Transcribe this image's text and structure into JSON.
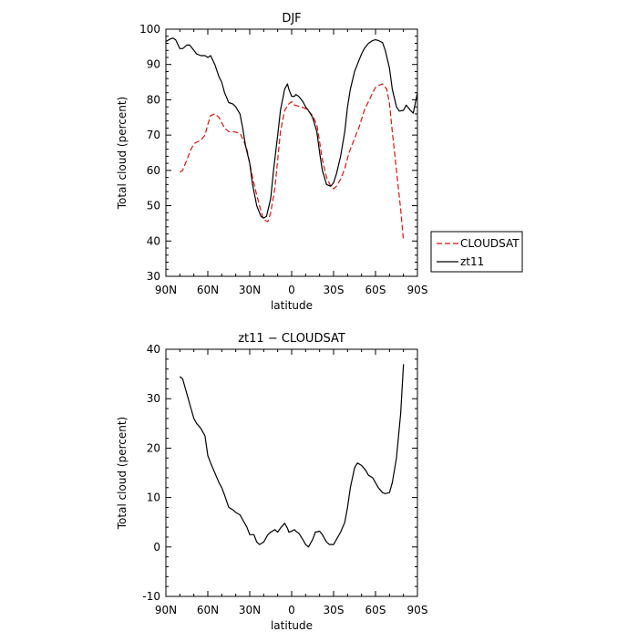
{
  "chart_data": [
    {
      "type": "line",
      "title": "DJF",
      "xlabel": "latitude",
      "ylabel": "Total cloud (percent)",
      "xlim": [
        90,
        -90
      ],
      "ylim": [
        30,
        100
      ],
      "xticks": [
        90,
        60,
        30,
        0,
        -30,
        -60,
        -90
      ],
      "xtick_labels": [
        "90N",
        "60N",
        "30N",
        "0",
        "30S",
        "60S",
        "90S"
      ],
      "yticks": [
        30,
        40,
        50,
        60,
        70,
        80,
        90,
        100
      ],
      "legend": {
        "placement": "right-outside"
      },
      "series": [
        {
          "name": "CLOUDSAT",
          "color": "#e01010",
          "dash": true,
          "x": [
            80,
            78,
            75,
            72,
            70,
            68,
            65,
            62,
            60,
            58,
            55,
            52,
            50,
            48,
            45,
            42,
            40,
            37,
            35,
            32,
            30,
            28,
            25,
            22,
            20,
            17,
            15,
            12,
            10,
            8,
            5,
            2,
            0,
            -2,
            -5,
            -8,
            -10,
            -12,
            -15,
            -18,
            -20,
            -22,
            -25,
            -28,
            -30,
            -32,
            -35,
            -38,
            -40,
            -42,
            -45,
            -48,
            -50,
            -52,
            -55,
            -58,
            -60,
            -62,
            -65,
            -68,
            -70,
            -72,
            -75,
            -78,
            -80
          ],
          "y": [
            59.5,
            60,
            63,
            66,
            67.5,
            68,
            68.5,
            70,
            73,
            75.5,
            76,
            75,
            73.5,
            72,
            71,
            71,
            70.8,
            70.5,
            69,
            66,
            62,
            58,
            53,
            48.5,
            46,
            45.5,
            48,
            55,
            63,
            71,
            77,
            78.8,
            79.5,
            78.5,
            78.2,
            77.8,
            77.5,
            76.8,
            75.5,
            73,
            68,
            63,
            58,
            55.5,
            54.8,
            55.5,
            57.5,
            60.5,
            63.5,
            66,
            69,
            72,
            74.5,
            77,
            79.5,
            82,
            83.5,
            84,
            84.5,
            83,
            79,
            71,
            60,
            49,
            40
          ]
        },
        {
          "name": "zt11",
          "color": "#000000",
          "dash": false,
          "x": [
            90,
            87,
            85,
            83,
            80,
            78,
            75,
            73,
            70,
            68,
            65,
            63,
            62,
            60,
            58,
            55,
            52,
            50,
            48,
            45,
            42,
            40,
            37,
            35,
            33,
            30,
            28,
            25,
            22,
            20,
            18,
            15,
            13,
            10,
            8,
            5,
            3,
            2,
            0,
            -2,
            -3,
            -5,
            -8,
            -10,
            -12,
            -15,
            -18,
            -20,
            -22,
            -25,
            -28,
            -30,
            -32,
            -35,
            -38,
            -40,
            -42,
            -45,
            -48,
            -50,
            -52,
            -55,
            -58,
            -60,
            -62,
            -65,
            -67,
            -70,
            -72,
            -75,
            -77,
            -80,
            -82,
            -85,
            -87,
            -90
          ],
          "y": [
            96.5,
            97.2,
            97.5,
            97,
            94.5,
            94.5,
            95.5,
            95.5,
            94,
            93,
            92.5,
            92.5,
            92.5,
            92,
            92.5,
            90,
            86.5,
            85,
            82,
            79.2,
            78.8,
            78,
            76,
            72,
            67,
            62,
            56,
            50,
            47,
            46.5,
            47,
            52,
            60,
            70,
            77,
            83,
            84.5,
            83,
            81,
            81,
            81.5,
            81,
            79.5,
            78,
            77,
            75,
            71,
            65,
            60,
            56,
            55.5,
            56.5,
            59,
            64,
            71,
            78,
            83,
            88,
            91,
            93,
            94.5,
            96,
            96.8,
            97,
            96.8,
            96.2,
            94,
            89,
            83,
            78,
            76.8,
            77,
            78.5,
            77,
            76.2,
            82
          ]
        }
      ]
    },
    {
      "type": "line",
      "title": "zt11 − CLOUDSAT",
      "xlabel": "latitude",
      "ylabel": "Total cloud (percent)",
      "xlim": [
        90,
        -90
      ],
      "ylim": [
        -10,
        40
      ],
      "xticks": [
        90,
        60,
        30,
        0,
        -30,
        -60,
        -90
      ],
      "xtick_labels": [
        "90N",
        "60N",
        "30N",
        "0",
        "30S",
        "60S",
        "90S"
      ],
      "yticks": [
        -10,
        0,
        10,
        20,
        30,
        40
      ],
      "series": [
        {
          "color": "#000000",
          "dash": false,
          "x": [
            80,
            78,
            75,
            72,
            70,
            68,
            65,
            62,
            60,
            58,
            55,
            52,
            50,
            48,
            45,
            42,
            40,
            37,
            35,
            32,
            30,
            27,
            25,
            23,
            20,
            17,
            15,
            12,
            10,
            8,
            5,
            3,
            2,
            0,
            -2,
            -3,
            -5,
            -8,
            -10,
            -12,
            -15,
            -17,
            -20,
            -22,
            -25,
            -27,
            -30,
            -32,
            -35,
            -38,
            -40,
            -42,
            -45,
            -47,
            -50,
            -53,
            -55,
            -58,
            -60,
            -62,
            -65,
            -67,
            -70,
            -72,
            -75,
            -78,
            -80
          ],
          "y": [
            34.5,
            34,
            31,
            28,
            26,
            25,
            24,
            22.5,
            18.5,
            17,
            15,
            13,
            12,
            10.5,
            8,
            7.5,
            7,
            6.5,
            5.5,
            4,
            2.5,
            2.5,
            1,
            0.5,
            1,
            2.5,
            3,
            3.5,
            3,
            3.8,
            4.8,
            3.8,
            3,
            3.2,
            3.5,
            3.2,
            2.8,
            1.5,
            0.5,
            0,
            1.5,
            3,
            3.2,
            2.5,
            1,
            0.5,
            0.5,
            1.5,
            3,
            5,
            8,
            12,
            16,
            17,
            16.5,
            15.5,
            14.5,
            14,
            13,
            12,
            11,
            10.8,
            11,
            13,
            18,
            27,
            37
          ]
        }
      ]
    }
  ]
}
